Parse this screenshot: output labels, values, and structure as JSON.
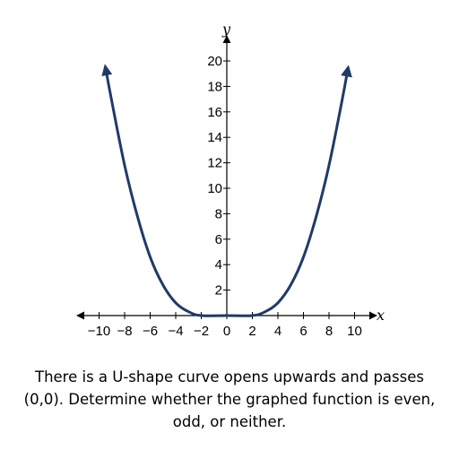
{
  "caption": "There is a U-shape curve opens upwards and passes (0,0). Determine whether the graphed function is even, odd, or neither.",
  "colors": {
    "curve": "#1f3a68",
    "axis": "#000000"
  },
  "chart_data": {
    "type": "line",
    "title": "",
    "xlabel": "x",
    "ylabel": "y",
    "xlim": [
      -11,
      11
    ],
    "ylim": [
      0,
      21
    ],
    "x_ticks": [
      -10,
      -8,
      -6,
      -4,
      -2,
      0,
      2,
      4,
      6,
      8,
      10
    ],
    "x_tick_labels": [
      "−10",
      "−8",
      "−6",
      "−4",
      "−2",
      "0",
      "2",
      "4",
      "6",
      "8",
      "10"
    ],
    "y_ticks": [
      2,
      4,
      6,
      8,
      10,
      12,
      14,
      16,
      18,
      20
    ],
    "y_tick_labels": [
      "2",
      "4",
      "6",
      "8",
      "10",
      "12",
      "14",
      "16",
      "18",
      "20"
    ],
    "grid": false,
    "series": [
      {
        "x": [
          -9.5,
          -9,
          -8,
          -7,
          -6,
          -5,
          -4,
          -3,
          -2,
          0,
          2,
          3,
          4,
          5,
          6,
          7,
          8,
          9,
          9.5
        ],
        "y": [
          19.5,
          16.8,
          11.8,
          7.8,
          4.6,
          2.4,
          1.0,
          0.3,
          0.0,
          0.0,
          0.0,
          0.3,
          1.0,
          2.4,
          4.6,
          7.8,
          11.8,
          16.8,
          19.5
        ],
        "end_arrows": true
      }
    ]
  }
}
